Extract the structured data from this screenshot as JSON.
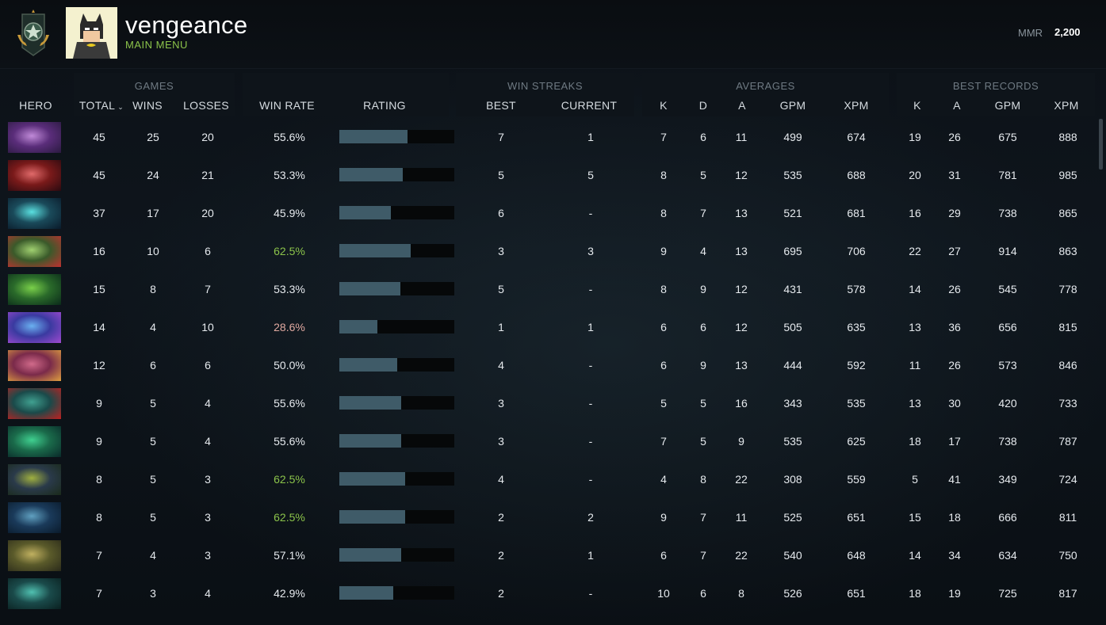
{
  "header": {
    "username": "vengeance",
    "subtitle": "MAIN MENU",
    "mmr_label": "MMR",
    "mmr_value": "2,200"
  },
  "groups": {
    "games": "GAMES",
    "win_streaks": "WIN STREAKS",
    "averages": "AVERAGES",
    "best_records": "BEST RECORDS"
  },
  "columns": {
    "hero": "HERO",
    "total": "TOTAL",
    "wins": "WINS",
    "losses": "LOSSES",
    "win_rate": "WIN RATE",
    "rating": "RATING",
    "best": "BEST",
    "current": "CURRENT",
    "avg_k": "K",
    "avg_d": "D",
    "avg_a": "A",
    "avg_gpm": "GPM",
    "avg_xpm": "XPM",
    "rec_k": "K",
    "rec_a": "A",
    "rec_gpm": "GPM",
    "rec_xpm": "XPM"
  },
  "colors": {
    "win_rate_high": "#8bc34a",
    "win_rate_low": "#e0a9a0",
    "win_rate_normal": "#e6eaee",
    "rating_bar": "#3f5b68"
  },
  "rows": [
    {
      "total": "45",
      "wins": "25",
      "losses": "20",
      "win_rate": "55.6%",
      "rate_level": "normal",
      "rating": 0.59,
      "best": "7",
      "current": "1",
      "k": "7",
      "d": "6",
      "a": "11",
      "gpm": "499",
      "xpm": "674",
      "rk": "19",
      "ra": "26",
      "rgpm": "675",
      "rxpm": "888",
      "colors": [
        "#5a2d7a",
        "#c08ad8",
        "#2a1a40"
      ]
    },
    {
      "total": "45",
      "wins": "24",
      "losses": "21",
      "win_rate": "53.3%",
      "rate_level": "normal",
      "rating": 0.55,
      "best": "5",
      "current": "5",
      "k": "8",
      "d": "5",
      "a": "12",
      "gpm": "535",
      "xpm": "688",
      "rk": "20",
      "ra": "31",
      "rgpm": "781",
      "rxpm": "985",
      "colors": [
        "#7a1a1a",
        "#e06a6a",
        "#2a0a10"
      ]
    },
    {
      "total": "37",
      "wins": "17",
      "losses": "20",
      "win_rate": "45.9%",
      "rate_level": "normal",
      "rating": 0.45,
      "best": "6",
      "current": "-",
      "k": "8",
      "d": "7",
      "a": "13",
      "gpm": "521",
      "xpm": "681",
      "rk": "16",
      "ra": "29",
      "rgpm": "738",
      "rxpm": "865",
      "colors": [
        "#1a4a5a",
        "#5ae0e0",
        "#0a1a2a"
      ]
    },
    {
      "total": "16",
      "wins": "10",
      "losses": "6",
      "win_rate": "62.5%",
      "rate_level": "high",
      "rating": 0.62,
      "best": "3",
      "current": "3",
      "k": "9",
      "d": "4",
      "a": "13",
      "gpm": "695",
      "xpm": "706",
      "rk": "22",
      "ra": "27",
      "rgpm": "914",
      "rxpm": "863",
      "colors": [
        "#3a5a2a",
        "#a0d070",
        "#c03030"
      ]
    },
    {
      "total": "15",
      "wins": "8",
      "losses": "7",
      "win_rate": "53.3%",
      "rate_level": "normal",
      "rating": 0.53,
      "best": "5",
      "current": "-",
      "k": "8",
      "d": "9",
      "a": "12",
      "gpm": "431",
      "xpm": "578",
      "rk": "14",
      "ra": "26",
      "rgpm": "545",
      "rxpm": "778",
      "colors": [
        "#2a6a2a",
        "#7ad04a",
        "#0a2a1a"
      ]
    },
    {
      "total": "14",
      "wins": "4",
      "losses": "10",
      "win_rate": "28.6%",
      "rate_level": "low",
      "rating": 0.33,
      "best": "1",
      "current": "1",
      "k": "6",
      "d": "6",
      "a": "12",
      "gpm": "505",
      "xpm": "635",
      "rk": "13",
      "ra": "36",
      "rgpm": "656",
      "rxpm": "815",
      "colors": [
        "#3a3aa0",
        "#6ab0f0",
        "#a04ad0"
      ]
    },
    {
      "total": "12",
      "wins": "6",
      "losses": "6",
      "win_rate": "50.0%",
      "rate_level": "normal",
      "rating": 0.5,
      "best": "4",
      "current": "-",
      "k": "6",
      "d": "9",
      "a": "13",
      "gpm": "444",
      "xpm": "592",
      "rk": "11",
      "ra": "26",
      "rgpm": "573",
      "rxpm": "846",
      "colors": [
        "#7a2a4a",
        "#d06a8a",
        "#e0a040"
      ]
    },
    {
      "total": "9",
      "wins": "5",
      "losses": "4",
      "win_rate": "55.6%",
      "rate_level": "normal",
      "rating": 0.54,
      "best": "3",
      "current": "-",
      "k": "5",
      "d": "5",
      "a": "16",
      "gpm": "343",
      "xpm": "535",
      "rk": "13",
      "ra": "30",
      "rgpm": "420",
      "rxpm": "733",
      "colors": [
        "#1a4a4a",
        "#40a090",
        "#c02020"
      ]
    },
    {
      "total": "9",
      "wins": "5",
      "losses": "4",
      "win_rate": "55.6%",
      "rate_level": "normal",
      "rating": 0.54,
      "best": "3",
      "current": "-",
      "k": "7",
      "d": "5",
      "a": "9",
      "gpm": "535",
      "xpm": "625",
      "rk": "18",
      "ra": "17",
      "rgpm": "738",
      "rxpm": "787",
      "colors": [
        "#1a6a4a",
        "#40d090",
        "#0a2a2a"
      ]
    },
    {
      "total": "8",
      "wins": "5",
      "losses": "3",
      "win_rate": "62.5%",
      "rate_level": "high",
      "rating": 0.57,
      "best": "4",
      "current": "-",
      "k": "4",
      "d": "8",
      "a": "22",
      "gpm": "308",
      "xpm": "559",
      "rk": "5",
      "ra": "41",
      "rgpm": "349",
      "rxpm": "724",
      "colors": [
        "#2a3a4a",
        "#a0b040",
        "#1a2a1a"
      ]
    },
    {
      "total": "8",
      "wins": "5",
      "losses": "3",
      "win_rate": "62.5%",
      "rate_level": "high",
      "rating": 0.57,
      "best": "2",
      "current": "2",
      "k": "9",
      "d": "7",
      "a": "11",
      "gpm": "525",
      "xpm": "651",
      "rk": "15",
      "ra": "18",
      "rgpm": "666",
      "rxpm": "811",
      "colors": [
        "#1a3a5a",
        "#60a0c0",
        "#0a1a2a"
      ]
    },
    {
      "total": "7",
      "wins": "4",
      "losses": "3",
      "win_rate": "57.1%",
      "rate_level": "normal",
      "rating": 0.54,
      "best": "2",
      "current": "1",
      "k": "6",
      "d": "7",
      "a": "22",
      "gpm": "540",
      "xpm": "648",
      "rk": "14",
      "ra": "34",
      "rgpm": "634",
      "rxpm": "750",
      "colors": [
        "#5a5a2a",
        "#c0b060",
        "#2a2a1a"
      ]
    },
    {
      "total": "7",
      "wins": "3",
      "losses": "4",
      "win_rate": "42.9%",
      "rate_level": "normal",
      "rating": 0.47,
      "best": "2",
      "current": "-",
      "k": "10",
      "d": "6",
      "a": "8",
      "gpm": "526",
      "xpm": "651",
      "rk": "18",
      "ra": "19",
      "rgpm": "725",
      "rxpm": "817",
      "colors": [
        "#1a4a4a",
        "#50c0b0",
        "#0a2020"
      ]
    }
  ]
}
